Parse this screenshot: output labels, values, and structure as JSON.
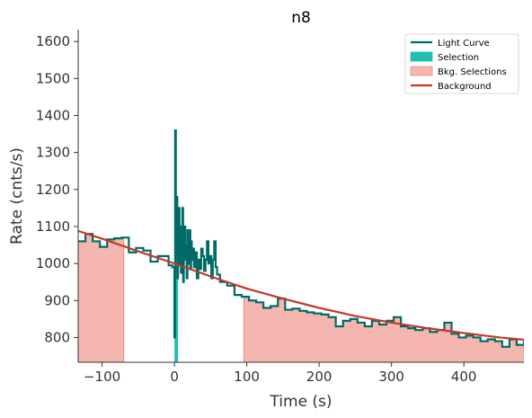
{
  "chart_data": {
    "type": "line",
    "title": "n8",
    "xlabel": "Time (s)",
    "ylabel": "Rate (cnts/s)",
    "xlim": [
      -133,
      483
    ],
    "ylim": [
      733,
      1632
    ],
    "xticks": [
      -100,
      0,
      100,
      200,
      300,
      400
    ],
    "yticks": [
      800,
      900,
      1000,
      1100,
      1200,
      1300,
      1400,
      1500,
      1600
    ],
    "grid": false,
    "legend_position": "top-right",
    "legend": [
      "Light Curve",
      "Selection",
      "Bkg. Selections",
      "Background"
    ],
    "colors": {
      "light_curve": "#006b66",
      "selection": "#1fbfb4",
      "bkg_fill": "#f4b6ae",
      "bkg_edge": "#e08f86",
      "background": "#c0392b"
    },
    "selection_range": [
      0,
      5
    ],
    "bkg_selections": [
      [
        -133,
        -70
      ],
      [
        96,
        483
      ]
    ],
    "background_model": {
      "x": [
        -133,
        -100,
        -50,
        0,
        50,
        100,
        150,
        200,
        250,
        300,
        350,
        400,
        450,
        483
      ],
      "y": [
        1088,
        1067,
        1033,
        1000,
        965,
        932,
        905,
        880,
        858,
        840,
        825,
        812,
        800,
        794
      ]
    },
    "light_curve": {
      "x": [
        -133,
        -123,
        -113,
        -103,
        -93,
        -83,
        -73,
        -63,
        -53,
        -43,
        -33,
        -23,
        -13,
        -8,
        -3,
        0,
        1,
        2,
        3,
        4,
        5,
        6,
        7,
        8,
        9,
        10,
        11,
        12,
        13,
        14,
        15,
        16,
        17,
        18,
        19,
        20,
        21,
        22,
        23,
        24,
        25,
        27,
        29,
        31,
        33,
        35,
        37,
        39,
        41,
        43,
        45,
        47,
        49,
        51,
        53,
        55,
        57,
        59,
        63,
        73,
        83,
        93,
        103,
        113,
        123,
        133,
        143,
        153,
        163,
        173,
        183,
        193,
        203,
        213,
        223,
        233,
        243,
        253,
        263,
        273,
        283,
        293,
        303,
        313,
        323,
        333,
        343,
        353,
        363,
        373,
        383,
        393,
        403,
        413,
        423,
        433,
        443,
        453,
        463,
        473,
        483
      ],
      "y": [
        1060,
        1080,
        1060,
        1045,
        1065,
        1068,
        1070,
        1030,
        1042,
        1035,
        1005,
        1020,
        1020,
        995,
        990,
        800,
        1360,
        1020,
        1180,
        960,
        1060,
        1150,
        1000,
        1100,
        975,
        1030,
        1150,
        950,
        1080,
        1100,
        1010,
        1050,
        960,
        1090,
        1040,
        1000,
        1090,
        985,
        1060,
        1010,
        1040,
        990,
        1030,
        960,
        1010,
        985,
        1040,
        1020,
        980,
        1010,
        1060,
        1000,
        1020,
        960,
        1010,
        1060,
        990,
        970,
        950,
        940,
        915,
        910,
        900,
        895,
        880,
        885,
        905,
        875,
        878,
        872,
        868,
        865,
        862,
        855,
        830,
        845,
        850,
        840,
        830,
        845,
        835,
        845,
        855,
        830,
        825,
        820,
        825,
        815,
        820,
        840,
        810,
        800,
        805,
        800,
        790,
        795,
        790,
        775,
        795,
        780,
        795
      ]
    }
  }
}
